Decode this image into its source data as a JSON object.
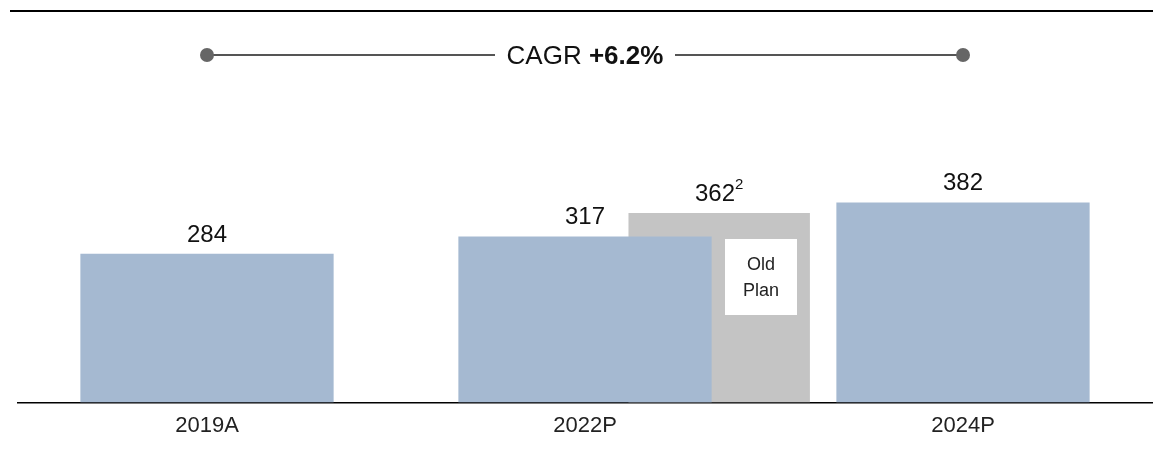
{
  "chart_data": {
    "type": "bar",
    "categories": [
      "2019A",
      "2022P",
      "2024P"
    ],
    "series": [
      {
        "color": "#a5b9d1",
        "values": [
          284,
          317,
          382
        ],
        "value_labels": [
          "284",
          "317",
          "382"
        ]
      },
      {
        "name": "Old Plan",
        "color": "#c4c4c4",
        "values": [
          null,
          362,
          null
        ],
        "value_labels": [
          null,
          "362$^{2}$",
          null
        ]
      }
    ],
    "tick_labels": "x",
    "annotations": [
      "CAGR +6.2%"
    ]
  }
}
